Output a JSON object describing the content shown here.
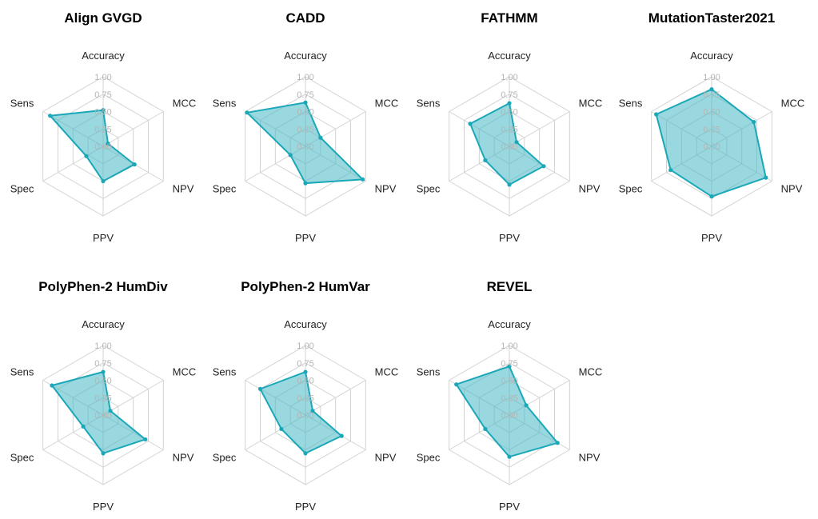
{
  "colors": {
    "series": "#1aa8b8",
    "fill": "#47b8c6",
    "grid": "#d3d3d3",
    "tick": "#b4b4b4"
  },
  "chart_data": {
    "type": "radar",
    "axes": [
      "Accuracy",
      "MCC",
      "NPV",
      "PPV",
      "Spec",
      "Sens"
    ],
    "rlim": [
      0,
      1
    ],
    "ticks": [
      "0.00",
      "0.25",
      "0.50",
      "0.75",
      "1.00"
    ],
    "grid": true,
    "panels": [
      {
        "title": "Align GVGD",
        "values": [
          0.52,
          0.08,
          0.52,
          0.5,
          0.28,
          0.88
        ]
      },
      {
        "title": "CADD",
        "values": [
          0.63,
          0.25,
          0.95,
          0.53,
          0.25,
          0.97
        ]
      },
      {
        "title": "FATHMM",
        "values": [
          0.62,
          0.12,
          0.57,
          0.55,
          0.4,
          0.65
        ]
      },
      {
        "title": "MutationTaster2021",
        "values": [
          0.82,
          0.7,
          0.9,
          0.72,
          0.68,
          0.92
        ]
      },
      {
        "title": "PolyPhen-2 HumDiv",
        "values": [
          0.62,
          0.12,
          0.7,
          0.55,
          0.33,
          0.85
        ]
      },
      {
        "title": "PolyPhen-2 HumVar",
        "values": [
          0.62,
          0.12,
          0.6,
          0.55,
          0.4,
          0.75
        ]
      },
      {
        "title": "REVEL",
        "values": [
          0.7,
          0.28,
          0.8,
          0.6,
          0.4,
          0.88
        ]
      }
    ]
  }
}
